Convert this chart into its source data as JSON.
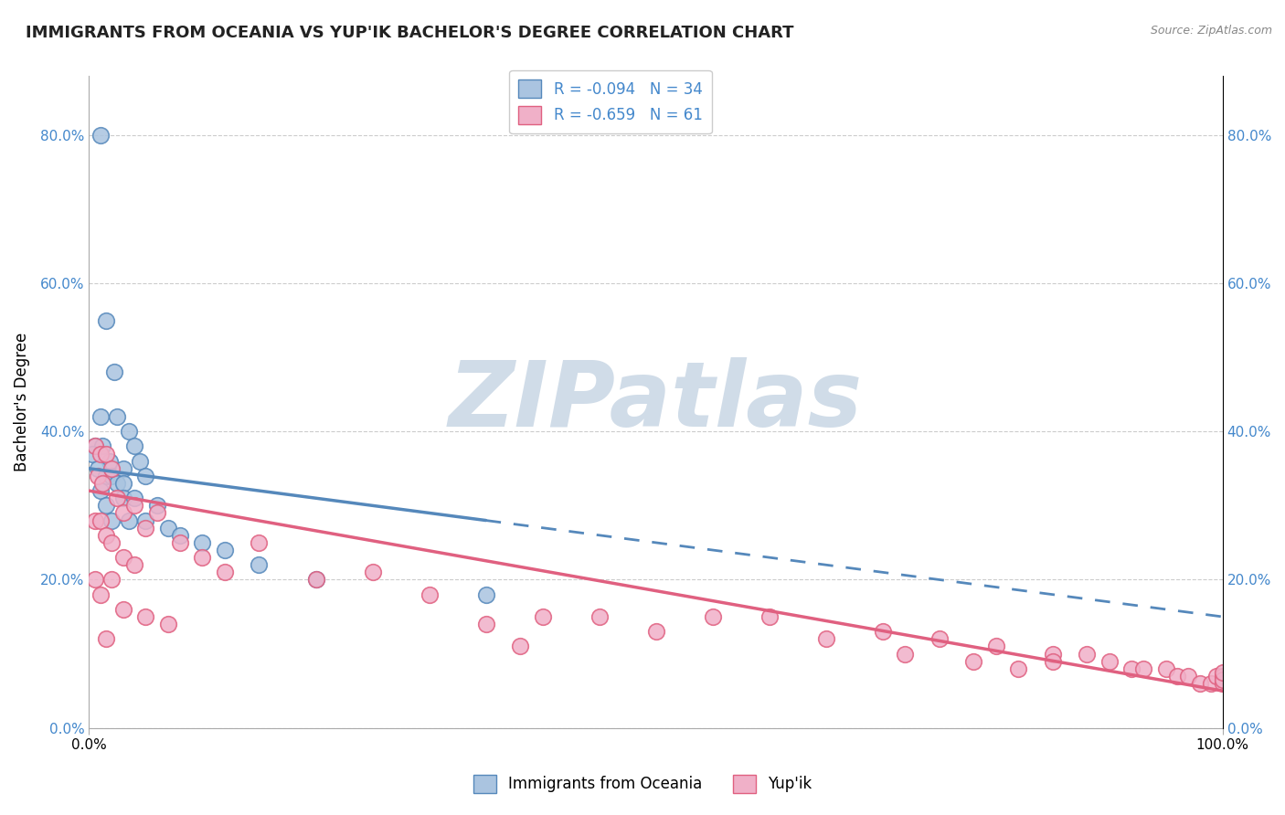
{
  "title": "IMMIGRANTS FROM OCEANIA VS YUP'IK BACHELOR'S DEGREE CORRELATION CHART",
  "source": "Source: ZipAtlas.com",
  "ylabel": "Bachelor's Degree",
  "legend_label1": "Immigrants from Oceania",
  "legend_label2": "Yup'ik",
  "R1": -0.094,
  "N1": 34,
  "R2": -0.659,
  "N2": 61,
  "background_color": "#ffffff",
  "watermark": "ZIPatlas",
  "watermark_color_zip": "#c8d4e0",
  "watermark_color_atlas": "#d8e4f0",
  "blue_color": "#5588bb",
  "blue_face": "#aac4e0",
  "pink_color": "#e06080",
  "pink_face": "#f0b0c8",
  "blue_scatter": [
    [
      1.0,
      80.0
    ],
    [
      1.5,
      55.0
    ],
    [
      2.2,
      48.0
    ],
    [
      1.0,
      42.0
    ],
    [
      0.5,
      38.0
    ],
    [
      1.2,
      38.0
    ],
    [
      2.5,
      42.0
    ],
    [
      0.3,
      37.0
    ],
    [
      1.8,
      36.0
    ],
    [
      3.5,
      40.0
    ],
    [
      4.0,
      38.0
    ],
    [
      0.8,
      35.0
    ],
    [
      1.5,
      34.0
    ],
    [
      2.0,
      34.0
    ],
    [
      3.0,
      35.0
    ],
    [
      4.5,
      36.0
    ],
    [
      1.0,
      32.0
    ],
    [
      2.5,
      33.0
    ],
    [
      3.0,
      33.0
    ],
    [
      5.0,
      34.0
    ],
    [
      1.5,
      30.0
    ],
    [
      3.0,
      31.0
    ],
    [
      4.0,
      31.0
    ],
    [
      6.0,
      30.0
    ],
    [
      2.0,
      28.0
    ],
    [
      3.5,
      28.0
    ],
    [
      5.0,
      28.0
    ],
    [
      7.0,
      27.0
    ],
    [
      8.0,
      26.0
    ],
    [
      10.0,
      25.0
    ],
    [
      12.0,
      24.0
    ],
    [
      15.0,
      22.0
    ],
    [
      20.0,
      20.0
    ],
    [
      35.0,
      18.0
    ]
  ],
  "pink_scatter": [
    [
      0.5,
      38.0
    ],
    [
      1.0,
      37.0
    ],
    [
      1.5,
      37.0
    ],
    [
      0.8,
      34.0
    ],
    [
      1.2,
      33.0
    ],
    [
      2.0,
      35.0
    ],
    [
      2.5,
      31.0
    ],
    [
      3.0,
      29.0
    ],
    [
      0.5,
      28.0
    ],
    [
      4.0,
      30.0
    ],
    [
      1.0,
      28.0
    ],
    [
      5.0,
      27.0
    ],
    [
      1.5,
      26.0
    ],
    [
      6.0,
      29.0
    ],
    [
      2.0,
      25.0
    ],
    [
      8.0,
      25.0
    ],
    [
      3.0,
      23.0
    ],
    [
      10.0,
      23.0
    ],
    [
      4.0,
      22.0
    ],
    [
      12.0,
      21.0
    ],
    [
      0.5,
      20.0
    ],
    [
      2.0,
      20.0
    ],
    [
      15.0,
      25.0
    ],
    [
      1.0,
      18.0
    ],
    [
      20.0,
      20.0
    ],
    [
      3.0,
      16.0
    ],
    [
      25.0,
      21.0
    ],
    [
      5.0,
      15.0
    ],
    [
      30.0,
      18.0
    ],
    [
      35.0,
      14.0
    ],
    [
      1.5,
      12.0
    ],
    [
      40.0,
      15.0
    ],
    [
      7.0,
      14.0
    ],
    [
      45.0,
      15.0
    ],
    [
      50.0,
      13.0
    ],
    [
      55.0,
      15.0
    ],
    [
      60.0,
      15.0
    ],
    [
      38.0,
      11.0
    ],
    [
      65.0,
      12.0
    ],
    [
      70.0,
      13.0
    ],
    [
      75.0,
      12.0
    ],
    [
      72.0,
      10.0
    ],
    [
      80.0,
      11.0
    ],
    [
      78.0,
      9.0
    ],
    [
      85.0,
      10.0
    ],
    [
      82.0,
      8.0
    ],
    [
      88.0,
      10.0
    ],
    [
      90.0,
      9.0
    ],
    [
      85.0,
      9.0
    ],
    [
      92.0,
      8.0
    ],
    [
      93.0,
      8.0
    ],
    [
      95.0,
      8.0
    ],
    [
      96.0,
      7.0
    ],
    [
      97.0,
      7.0
    ],
    [
      98.0,
      6.0
    ],
    [
      99.0,
      6.0
    ],
    [
      99.5,
      7.0
    ],
    [
      100.0,
      7.0
    ],
    [
      100.0,
      6.0
    ],
    [
      100.0,
      6.5
    ],
    [
      100.0,
      7.5
    ]
  ],
  "blue_line_start": 0.0,
  "blue_line_solid_end": 35.0,
  "blue_line_end": 100.0,
  "blue_line_y_start": 35.0,
  "blue_line_y_solid_end": 28.0,
  "blue_line_y_end": 15.0,
  "pink_line_start": 0.0,
  "pink_line_solid_end": 100.0,
  "pink_line_y_start": 32.0,
  "pink_line_y_end": 5.0,
  "xlim": [
    0,
    100
  ],
  "ylim": [
    0,
    88
  ],
  "yticks": [
    0,
    20,
    40,
    60,
    80
  ],
  "ytick_labels": [
    "0.0%",
    "20.0%",
    "40.0%",
    "60.0%",
    "80.0%"
  ],
  "xtick_labels": [
    "0.0%",
    "100.0%"
  ],
  "grid_color": "#cccccc",
  "title_fontsize": 13,
  "axis_fontsize": 11,
  "legend_fontsize": 12
}
